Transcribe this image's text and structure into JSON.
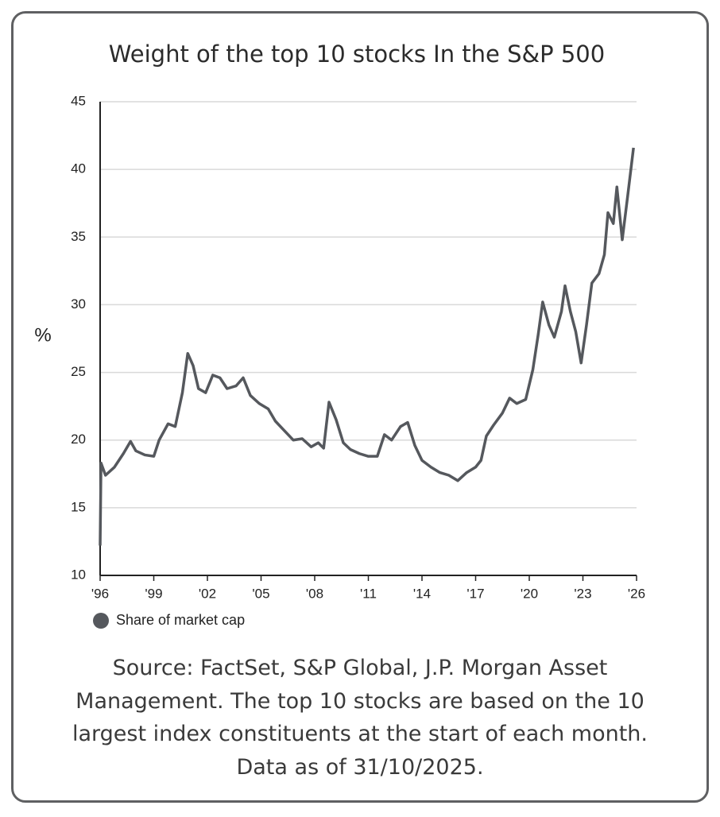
{
  "chart_data": {
    "type": "line",
    "title": "Weight of the top 10 stocks In the S&P 500",
    "y_label": "%",
    "source": "Source: FactSet, S&P Global, J.P. Morgan Asset Management. The top 10 stocks are based on the 10 largest index constituents at the start of each month. Data as of 31/10/2025.",
    "xlim": [
      1996,
      2026
    ],
    "xticks": [
      {
        "value": 1996,
        "label": "'96"
      },
      {
        "value": 1999,
        "label": "'99"
      },
      {
        "value": 2002,
        "label": "'02"
      },
      {
        "value": 2005,
        "label": "'05"
      },
      {
        "value": 2008,
        "label": "'08"
      },
      {
        "value": 2011,
        "label": "'11"
      },
      {
        "value": 2014,
        "label": "'14"
      },
      {
        "value": 2017,
        "label": "'17"
      },
      {
        "value": 2020,
        "label": "'20"
      },
      {
        "value": 2023,
        "label": "'23"
      },
      {
        "value": 2026,
        "label": "'26"
      }
    ],
    "ylim": [
      10,
      45
    ],
    "yticks": [
      10,
      15,
      20,
      25,
      30,
      35,
      40,
      45
    ],
    "grid": true,
    "legend": "bottom-left",
    "x": [
      1996.0,
      1996.05,
      1996.3,
      1996.8,
      1997.3,
      1997.7,
      1998.0,
      1998.5,
      1999.0,
      1999.3,
      1999.8,
      2000.2,
      2000.6,
      2000.9,
      2001.2,
      2001.5,
      2001.9,
      2002.3,
      2002.7,
      2003.1,
      2003.6,
      2004.0,
      2004.4,
      2004.9,
      2005.4,
      2005.8,
      2006.3,
      2006.8,
      2007.3,
      2007.8,
      2008.2,
      2008.5,
      2008.8,
      2009.2,
      2009.6,
      2010.0,
      2010.5,
      2011.0,
      2011.5,
      2011.9,
      2012.3,
      2012.8,
      2013.2,
      2013.6,
      2014.0,
      2014.5,
      2015.0,
      2015.5,
      2016.0,
      2016.5,
      2017.0,
      2017.3,
      2017.6,
      2018.0,
      2018.5,
      2018.9,
      2019.3,
      2019.8,
      2020.2,
      2020.5,
      2020.75,
      2021.1,
      2021.4,
      2021.8,
      2022.0,
      2022.3,
      2022.6,
      2022.9,
      2023.2,
      2023.5,
      2023.9,
      2024.2,
      2024.4,
      2024.7,
      2024.9,
      2025.2,
      2025.5,
      2025.83
    ],
    "series": [
      {
        "name": "Share of market cap",
        "color": "#55585d",
        "values": [
          12.2,
          18.3,
          17.4,
          18.0,
          19.0,
          19.9,
          19.2,
          18.9,
          18.8,
          20.0,
          21.2,
          21.0,
          23.5,
          26.4,
          25.5,
          23.8,
          23.5,
          24.8,
          24.6,
          23.8,
          24.0,
          24.6,
          23.3,
          22.7,
          22.3,
          21.4,
          20.7,
          20.0,
          20.1,
          19.5,
          19.8,
          19.4,
          22.8,
          21.5,
          19.8,
          19.3,
          19.0,
          18.8,
          18.8,
          20.4,
          20.0,
          21.0,
          21.3,
          19.6,
          18.5,
          18.0,
          17.6,
          17.4,
          17.0,
          17.6,
          18.0,
          18.5,
          20.3,
          21.1,
          22.0,
          23.1,
          22.7,
          23.0,
          25.2,
          27.8,
          30.2,
          28.5,
          27.6,
          29.5,
          31.4,
          29.5,
          28.0,
          25.7,
          28.5,
          31.6,
          32.3,
          33.7,
          36.8,
          36.0,
          38.7,
          34.8,
          38.0,
          41.6
        ]
      }
    ]
  }
}
